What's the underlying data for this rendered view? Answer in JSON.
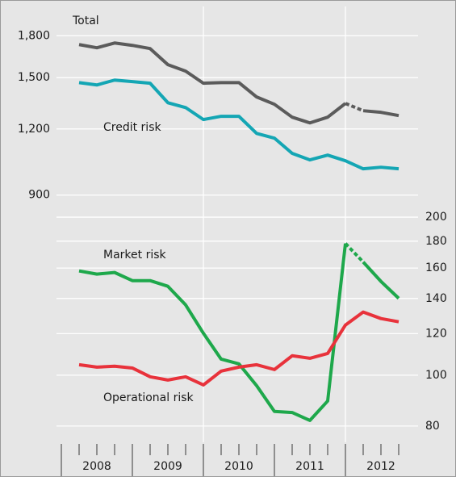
{
  "chart_data": [
    {
      "type": "line",
      "log_scale": true,
      "grid": true,
      "y_axis_side": "left",
      "ylim": [
        850,
        1960
      ],
      "yticks": [
        900,
        {
          "value": 1200,
          "label": "1,200"
        },
        {
          "value": 1500,
          "label": "1,500"
        },
        {
          "value": 1800,
          "label": "1,800"
        }
      ],
      "categories": [
        null,
        null,
        null,
        null,
        null,
        null,
        null,
        null,
        null,
        null,
        null,
        null,
        null,
        null,
        null,
        null,
        null,
        null,
        null
      ],
      "series": [
        {
          "name": "Total",
          "color": "#5b5b5b",
          "dashed_segment": [
            15,
            16
          ],
          "values": [
            1732,
            1708,
            1744,
            1726,
            1702,
            1587,
            1543,
            1464,
            1468,
            1468,
            1379,
            1336,
            1263,
            1232,
            1263,
            1341,
            1299,
            1290,
            1272
          ]
        },
        {
          "name": "Credit risk",
          "color": "#14a6b4",
          "values": [
            1468,
            1453,
            1484,
            1474,
            1464,
            1345,
            1317,
            1250,
            1268,
            1268,
            1177,
            1153,
            1079,
            1049,
            1071,
            1045,
            1009,
            1016,
            1009
          ]
        }
      ]
    },
    {
      "type": "line",
      "log_scale": true,
      "grid": true,
      "y_axis_side": "right",
      "ylim": [
        74.5,
        208
      ],
      "yticks": [
        80,
        100,
        120,
        140,
        160,
        180,
        200
      ],
      "categories": [
        null,
        null,
        null,
        null,
        null,
        null,
        null,
        null,
        null,
        null,
        null,
        null,
        null,
        null,
        null,
        null,
        null,
        null,
        null
      ],
      "year_labels": [
        "2008",
        "2009",
        "2010",
        "2011",
        "2012"
      ],
      "series": [
        {
          "name": "Market risk",
          "color": "#1ea84b",
          "dashed_segment": [
            15,
            16
          ],
          "values": [
            158.0,
            155.8,
            156.9,
            151.4,
            151.4,
            147.7,
            136.1,
            120.2,
            107.3,
            105.1,
            95.5,
            85.3,
            84.9,
            82.0,
            89.3,
            178.2,
            164.3,
            150.9,
            140.1
          ]
        },
        {
          "name": "Operational risk",
          "color": "#e8323b",
          "values": [
            104.7,
            103.6,
            104.0,
            103.2,
            99.3,
            97.9,
            99.3,
            95.8,
            101.8,
            103.6,
            104.7,
            102.5,
            108.9,
            107.7,
            110.0,
            124.6,
            131.9,
            128.2,
            126.4
          ]
        }
      ]
    }
  ]
}
